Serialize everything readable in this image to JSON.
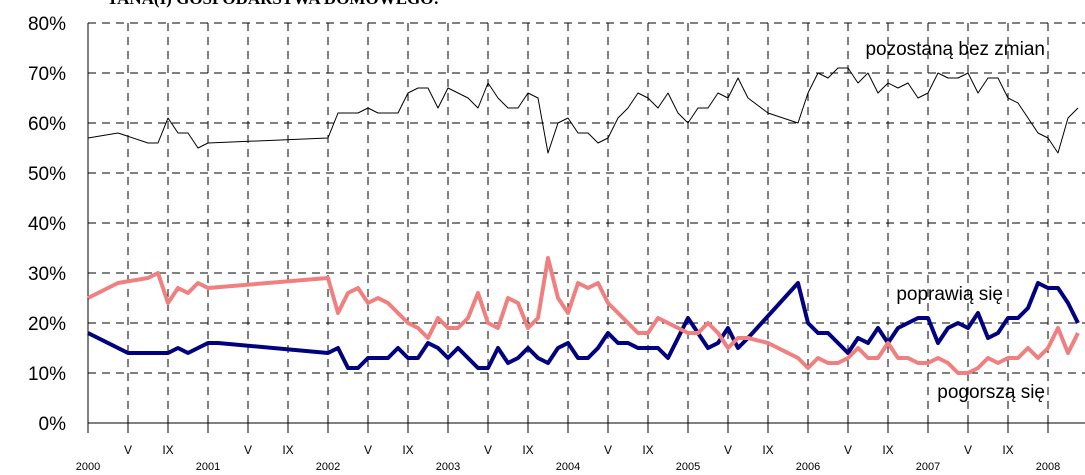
{
  "chart_data": {
    "type": "line",
    "title": "TANA(I) GOSPODARSTWA DOMOWEGO:",
    "xlim": [
      0,
      99.7
    ],
    "xticks": [
      {
        "value": 0,
        "label": "2000"
      },
      {
        "value": 4,
        "label": "V"
      },
      {
        "value": 8,
        "label": "IX"
      },
      {
        "value": 12,
        "label": "2001"
      },
      {
        "value": 16,
        "label": "V"
      },
      {
        "value": 20,
        "label": "IX"
      },
      {
        "value": 24,
        "label": "2002"
      },
      {
        "value": 28,
        "label": "V"
      },
      {
        "value": 32,
        "label": "IX"
      },
      {
        "value": 36,
        "label": "2003"
      },
      {
        "value": 40,
        "label": "V"
      },
      {
        "value": 44,
        "label": "IX"
      },
      {
        "value": 48,
        "label": "2004"
      },
      {
        "value": 52,
        "label": "V"
      },
      {
        "value": 56,
        "label": "IX"
      },
      {
        "value": 60,
        "label": "2005"
      },
      {
        "value": 64,
        "label": "V"
      },
      {
        "value": 68,
        "label": "IX"
      },
      {
        "value": 72,
        "label": "2006"
      },
      {
        "value": 76,
        "label": "V"
      },
      {
        "value": 80,
        "label": "IX"
      },
      {
        "value": 84,
        "label": "2007"
      },
      {
        "value": 88,
        "label": "V"
      },
      {
        "value": 92,
        "label": "IX"
      },
      {
        "value": 96,
        "label": "2008"
      }
    ],
    "ylim": [
      0,
      80
    ],
    "yticks": [
      {
        "value": 0,
        "label": "0%"
      },
      {
        "value": 10,
        "label": "10%"
      },
      {
        "value": 20,
        "label": "20%"
      },
      {
        "value": 30,
        "label": "30%"
      },
      {
        "value": 40,
        "label": "40%"
      },
      {
        "value": 50,
        "label": "50%"
      },
      {
        "value": 60,
        "label": "60%"
      },
      {
        "value": 70,
        "label": "70%"
      },
      {
        "value": 80,
        "label": "80%"
      }
    ],
    "grid": true,
    "series": [
      {
        "name": "pozostaną bez zmian",
        "color": "#000000",
        "width": 1,
        "x": [
          0,
          3,
          6,
          7,
          8,
          9,
          10,
          11,
          12,
          24,
          25,
          26,
          27,
          28,
          29,
          30,
          31,
          32,
          33,
          34,
          35,
          36,
          37,
          38,
          39,
          40,
          41,
          42,
          43,
          44,
          45,
          46,
          47,
          48,
          49,
          50,
          51,
          52,
          53,
          54,
          55,
          56,
          57,
          58,
          59,
          60,
          61,
          62,
          63,
          64,
          65,
          66,
          68,
          71,
          72,
          73,
          74,
          75,
          76,
          77,
          78,
          79,
          80,
          81,
          82,
          83,
          84,
          85,
          86,
          87,
          88,
          89,
          90,
          91,
          92,
          93,
          95,
          96,
          97,
          98,
          99
        ],
        "values": [
          57,
          58,
          56,
          56,
          61,
          58,
          58,
          55,
          56,
          57,
          62,
          62,
          62,
          63,
          62,
          62,
          62,
          66,
          67,
          67,
          63,
          67,
          66,
          65,
          63,
          68,
          65,
          63,
          63,
          66,
          65,
          54,
          60,
          61,
          58,
          58,
          56,
          57,
          61,
          63,
          66,
          65,
          63,
          66,
          62,
          60,
          63,
          63,
          66,
          65,
          69,
          65,
          62,
          60,
          66,
          70,
          69,
          71,
          71,
          68,
          70,
          66,
          68,
          67,
          68,
          65,
          66,
          70,
          69,
          69,
          70,
          66,
          69,
          69,
          65,
          64,
          58,
          57,
          54,
          61,
          63
        ]
      },
      {
        "name": "poprawią się",
        "color": "#000080",
        "width": 4,
        "x": [
          0,
          4,
          6,
          8,
          9,
          10,
          12,
          13,
          24,
          25,
          26,
          27,
          28,
          29,
          30,
          31,
          32,
          33,
          34,
          35,
          36,
          37,
          38,
          39,
          40,
          41,
          42,
          43,
          44,
          45,
          46,
          47,
          48,
          49,
          50,
          51,
          52,
          53,
          54,
          55,
          56,
          57,
          58,
          60,
          62,
          63,
          64,
          65,
          66,
          71,
          72,
          73,
          74,
          76,
          77,
          78,
          79,
          80,
          81,
          82,
          83,
          84,
          85,
          86,
          87,
          88,
          89,
          90,
          91,
          92,
          93,
          94,
          95,
          96,
          97,
          98,
          99
        ],
        "values": [
          18,
          14,
          14,
          14,
          15,
          14,
          16,
          16,
          14,
          15,
          11,
          11,
          13,
          13,
          13,
          15,
          13,
          13,
          16,
          15,
          13,
          15,
          13,
          11,
          11,
          15,
          12,
          13,
          15,
          13,
          12,
          15,
          16,
          13,
          13,
          15,
          18,
          16,
          16,
          15,
          15,
          15,
          13,
          21,
          15,
          16,
          19,
          15,
          17,
          28,
          20,
          18,
          18,
          14,
          17,
          16,
          19,
          16,
          19,
          20,
          21,
          21,
          16,
          19,
          20,
          19,
          22,
          17,
          18,
          21,
          21,
          23,
          28,
          27,
          27,
          24,
          20
        ]
      },
      {
        "name": "pogorszą się",
        "color": "#f08080",
        "width": 4,
        "x": [
          0,
          3,
          6,
          7,
          8,
          9,
          10,
          11,
          12,
          24,
          25,
          26,
          27,
          28,
          29,
          30,
          31,
          32,
          33,
          34,
          35,
          36,
          37,
          38,
          39,
          40,
          41,
          42,
          43,
          44,
          45,
          46,
          47,
          48,
          49,
          50,
          51,
          52,
          53,
          54,
          55,
          56,
          57,
          58,
          59,
          60,
          61,
          62,
          63,
          64,
          65,
          66,
          68,
          70,
          71,
          72,
          73,
          74,
          75,
          76,
          77,
          78,
          79,
          80,
          81,
          82,
          83,
          84,
          85,
          86,
          87,
          88,
          89,
          90,
          91,
          92,
          93,
          94,
          95,
          96,
          97,
          98,
          99
        ],
        "values": [
          25,
          28,
          29,
          30,
          24,
          27,
          26,
          28,
          27,
          29,
          22,
          26,
          27,
          24,
          25,
          24,
          22,
          20,
          19,
          17,
          21,
          19,
          19,
          21,
          26,
          20,
          19,
          25,
          24,
          19,
          21,
          33,
          25,
          22,
          28,
          27,
          28,
          24,
          22,
          20,
          18,
          18,
          21,
          20,
          19,
          18,
          18,
          20,
          18,
          15,
          17,
          17,
          16,
          14,
          13,
          11,
          13,
          12,
          12,
          13,
          15,
          13,
          13,
          16,
          13,
          13,
          12,
          12,
          13,
          12,
          10,
          10,
          11,
          13,
          12,
          13,
          13,
          15,
          13,
          15,
          19,
          14,
          18
        ]
      }
    ]
  }
}
